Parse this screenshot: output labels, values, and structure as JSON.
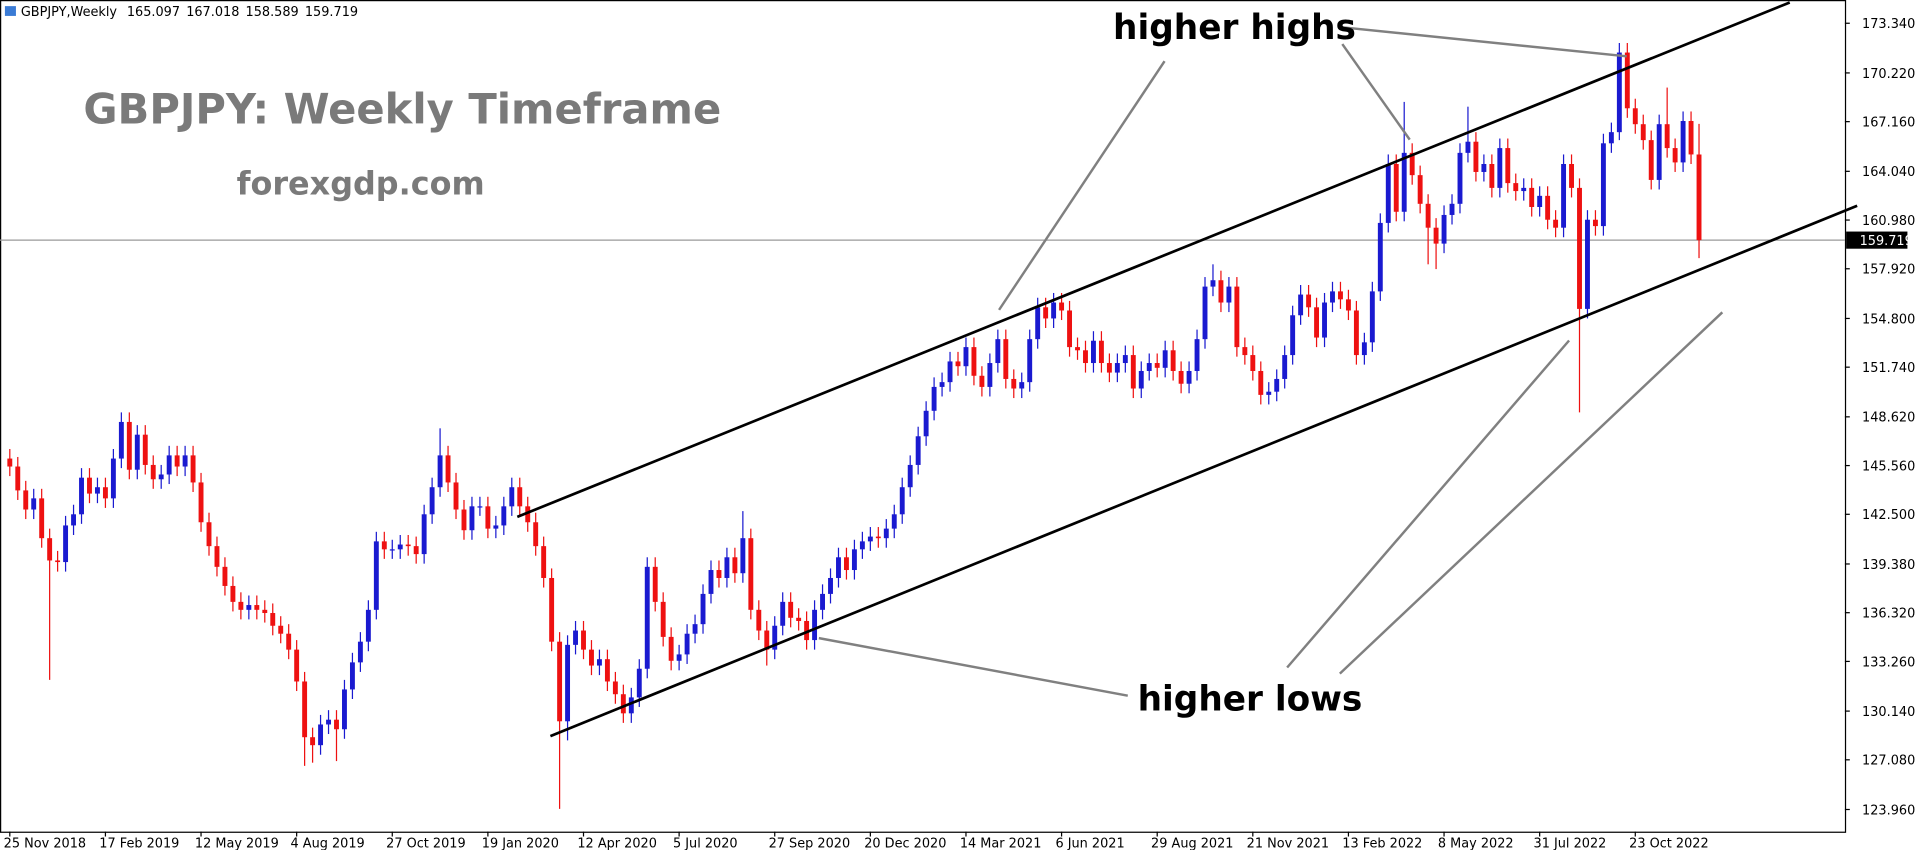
{
  "chart_data": {
    "type": "candlestick",
    "symbol": "GBPJPY,Weekly",
    "title": "GBPJPY: Weekly Timeframe",
    "subtitle": "forexgdp.com",
    "annotations": [
      "higher highs",
      "higher lows"
    ],
    "up_color": "#1a1ad0",
    "down_color": "#ee1111",
    "categories": [
      "25 Nov 2018",
      null,
      null,
      null,
      null,
      null,
      null,
      null,
      null,
      null,
      null,
      null,
      "17 Feb 2019",
      null,
      null,
      null,
      null,
      null,
      null,
      null,
      null,
      null,
      null,
      null,
      "12 May 2019",
      null,
      null,
      null,
      null,
      null,
      null,
      null,
      null,
      null,
      null,
      null,
      "4 Aug 2019",
      null,
      null,
      null,
      null,
      null,
      null,
      null,
      null,
      null,
      null,
      null,
      "27 Oct 2019",
      null,
      null,
      null,
      null,
      null,
      null,
      null,
      null,
      null,
      null,
      null,
      "19 Jan 2020",
      null,
      null,
      null,
      null,
      null,
      null,
      null,
      null,
      null,
      null,
      null,
      "12 Apr 2020",
      null,
      null,
      null,
      null,
      null,
      null,
      null,
      null,
      null,
      null,
      null,
      "5 Jul 2020",
      null,
      null,
      null,
      null,
      null,
      null,
      null,
      null,
      null,
      null,
      null,
      "27 Sep 2020",
      null,
      null,
      null,
      null,
      null,
      null,
      null,
      null,
      null,
      null,
      null,
      "20 Dec 2020",
      null,
      null,
      null,
      null,
      null,
      null,
      null,
      null,
      null,
      null,
      null,
      "14 Mar 2021",
      null,
      null,
      null,
      null,
      null,
      null,
      null,
      null,
      null,
      null,
      null,
      "6 Jun 2021",
      null,
      null,
      null,
      null,
      null,
      null,
      null,
      null,
      null,
      null,
      null,
      "29 Aug 2021",
      null,
      null,
      null,
      null,
      null,
      null,
      null,
      null,
      null,
      null,
      null,
      "21 Nov 2021",
      null,
      null,
      null,
      null,
      null,
      null,
      null,
      null,
      null,
      null,
      null,
      "13 Feb 2022",
      null,
      null,
      null,
      null,
      null,
      null,
      null,
      null,
      null,
      null,
      null,
      "8 May 2022",
      null,
      null,
      null,
      null,
      null,
      null,
      null,
      null,
      null,
      null,
      null,
      "31 Jul 2022",
      null,
      null,
      null,
      null,
      null,
      null,
      null,
      null,
      null,
      null,
      null,
      "23 Oct 2022",
      null,
      null,
      null,
      null,
      null,
      null,
      null,
      null
    ],
    "open": [
      146.0,
      145.5,
      144.0,
      142.8,
      143.5,
      141.0,
      139.6,
      139.5,
      141.8,
      142.5,
      144.8,
      143.8,
      144.2,
      143.5,
      146.0,
      148.3,
      145.3,
      147.5,
      145.6,
      144.7,
      145.0,
      146.2,
      145.5,
      146.2,
      144.5,
      142.0,
      140.5,
      139.2,
      138.0,
      137.0,
      136.5,
      136.8,
      136.5,
      136.3,
      135.5,
      135.0,
      134.0,
      132.0,
      128.5,
      128.0,
      129.3,
      129.6,
      129.0,
      131.5,
      133.2,
      134.5,
      136.5,
      140.8,
      140.3,
      140.3,
      140.6,
      140.5,
      140.0,
      142.5,
      144.2,
      146.2,
      144.5,
      142.8,
      141.5,
      143.0,
      143.0,
      141.6,
      141.8,
      143.0,
      144.2,
      143.0,
      142.0,
      140.5,
      138.5,
      134.5,
      129.5,
      134.3,
      135.2,
      134.0,
      133.0,
      133.4,
      132.0,
      131.2,
      130.0,
      131.0,
      132.8,
      139.2,
      137.0,
      134.8,
      133.3,
      133.7,
      135.0,
      135.6,
      137.5,
      139.0,
      138.5,
      139.8,
      138.8,
      141.0,
      136.5,
      135.2,
      134.0,
      135.5,
      137.0,
      136.0,
      135.8,
      134.6,
      136.5,
      137.5,
      138.5,
      139.8,
      139.0,
      140.3,
      140.8,
      141.1,
      141.0,
      141.6,
      142.5,
      144.2,
      145.6,
      147.4,
      149.0,
      150.5,
      150.8,
      152.1,
      151.8,
      153.0,
      151.2,
      150.5,
      152.0,
      153.5,
      151.0,
      150.4,
      150.8,
      153.5,
      155.5,
      154.8,
      155.8,
      155.3,
      153.0,
      152.8,
      152.0,
      153.4,
      152.0,
      151.4,
      152.0,
      152.5,
      150.4,
      151.5,
      152.0,
      151.7,
      152.8,
      151.5,
      150.7,
      151.5,
      153.5,
      156.8,
      157.2,
      155.8,
      156.8,
      153.0,
      152.5,
      151.5,
      150.0,
      150.2,
      151.0,
      152.5,
      155.0,
      156.3,
      155.5,
      153.6,
      155.8,
      156.5,
      156.0,
      155.3,
      152.5,
      153.3,
      156.5,
      160.8,
      164.5,
      161.5,
      165.2,
      163.8,
      162.0,
      160.5,
      159.5,
      161.3,
      162.0,
      165.2,
      165.9,
      164.0,
      164.5,
      163.0,
      165.5,
      163.3,
      162.8,
      163.0,
      161.8,
      162.5,
      161.0,
      160.5,
      164.5,
      163.0,
      155.4,
      161.0,
      160.6,
      165.8,
      166.5,
      171.5,
      168.0,
      167.0,
      166.0,
      163.5,
      167.0,
      165.5,
      164.6,
      167.2,
      165.097
    ],
    "high": [
      146.6,
      146.1,
      144.6,
      144.1,
      144.1,
      141.6,
      140.2,
      142.4,
      143.1,
      145.4,
      145.4,
      144.8,
      144.8,
      146.6,
      148.9,
      148.9,
      148.1,
      148.1,
      146.2,
      145.6,
      146.8,
      146.8,
      146.8,
      146.8,
      145.1,
      142.6,
      141.1,
      139.8,
      138.6,
      137.6,
      137.4,
      137.4,
      137.1,
      136.9,
      136.1,
      135.6,
      134.6,
      132.6,
      129.1,
      129.9,
      130.2,
      130.2,
      132.1,
      133.8,
      135.1,
      137.1,
      141.4,
      141.4,
      140.9,
      141.2,
      141.2,
      141.1,
      143.1,
      144.8,
      147.9,
      146.8,
      145.1,
      143.4,
      143.6,
      143.6,
      143.6,
      142.4,
      143.6,
      144.8,
      144.8,
      143.6,
      142.6,
      141.1,
      139.1,
      135.1,
      134.9,
      135.8,
      135.8,
      134.6,
      134.0,
      134.0,
      132.6,
      131.8,
      131.6,
      133.4,
      139.8,
      139.8,
      137.6,
      135.4,
      134.3,
      135.6,
      136.2,
      138.1,
      139.6,
      139.6,
      140.4,
      140.4,
      142.7,
      141.6,
      137.1,
      135.8,
      136.1,
      137.6,
      137.6,
      136.6,
      136.4,
      137.1,
      138.1,
      139.1,
      140.4,
      140.4,
      140.9,
      141.4,
      141.7,
      141.7,
      142.2,
      143.1,
      144.8,
      146.2,
      148.0,
      149.6,
      151.1,
      151.4,
      152.7,
      152.7,
      153.6,
      153.6,
      151.8,
      152.6,
      154.1,
      154.1,
      151.6,
      151.4,
      154.1,
      156.1,
      156.1,
      156.4,
      156.4,
      155.9,
      153.6,
      153.4,
      154.0,
      154.0,
      152.6,
      152.6,
      153.1,
      153.1,
      152.1,
      152.6,
      152.6,
      153.4,
      153.4,
      152.1,
      152.1,
      154.1,
      157.4,
      158.2,
      157.8,
      157.4,
      157.4,
      153.6,
      153.1,
      152.1,
      150.8,
      151.6,
      153.1,
      155.6,
      156.9,
      156.9,
      156.1,
      156.4,
      157.1,
      157.1,
      156.6,
      155.9,
      153.9,
      157.1,
      161.4,
      165.1,
      165.1,
      168.4,
      165.8,
      164.4,
      162.6,
      161.1,
      161.9,
      162.6,
      165.8,
      168.1,
      166.5,
      165.1,
      165.1,
      166.1,
      166.1,
      163.9,
      163.6,
      163.6,
      163.1,
      163.1,
      161.6,
      165.1,
      165.1,
      163.6,
      161.6,
      161.6,
      166.4,
      167.1,
      172.1,
      172.1,
      168.6,
      167.6,
      166.6,
      167.6,
      169.3,
      166.1,
      167.8,
      167.8,
      167.018
    ],
    "low": [
      144.9,
      143.4,
      142.2,
      142.2,
      140.4,
      132.1,
      138.9,
      138.9,
      141.2,
      141.9,
      143.2,
      143.2,
      142.9,
      142.9,
      145.4,
      144.7,
      144.7,
      145.0,
      144.1,
      144.1,
      144.4,
      144.9,
      144.9,
      143.9,
      141.4,
      139.9,
      138.6,
      137.4,
      136.4,
      135.9,
      135.9,
      135.9,
      135.7,
      134.9,
      134.4,
      133.4,
      131.4,
      126.7,
      126.9,
      127.4,
      128.7,
      127.0,
      128.4,
      130.9,
      132.6,
      133.9,
      135.9,
      139.7,
      139.7,
      139.7,
      139.9,
      139.4,
      139.4,
      141.9,
      143.6,
      143.9,
      142.2,
      140.9,
      140.9,
      142.4,
      141.0,
      141.0,
      141.2,
      142.4,
      142.4,
      141.4,
      139.9,
      137.9,
      133.9,
      124.0,
      128.3,
      133.7,
      133.4,
      132.4,
      132.4,
      131.4,
      130.6,
      129.4,
      129.4,
      130.4,
      132.2,
      136.4,
      134.2,
      132.7,
      132.7,
      133.1,
      134.4,
      135.0,
      136.9,
      137.9,
      137.9,
      138.2,
      138.2,
      135.9,
      134.6,
      133.0,
      133.4,
      134.9,
      135.4,
      135.2,
      134.0,
      134.0,
      135.9,
      136.9,
      137.9,
      138.4,
      138.4,
      139.7,
      140.2,
      140.4,
      140.4,
      141.0,
      141.9,
      143.6,
      145.0,
      146.8,
      148.4,
      149.9,
      150.2,
      151.2,
      151.2,
      150.6,
      149.9,
      149.9,
      151.4,
      150.4,
      149.8,
      149.8,
      150.2,
      152.9,
      154.2,
      154.2,
      154.7,
      152.4,
      152.2,
      151.4,
      151.4,
      151.4,
      150.8,
      150.8,
      151.4,
      149.8,
      149.8,
      150.9,
      151.1,
      151.1,
      150.9,
      150.1,
      150.1,
      150.9,
      152.9,
      156.2,
      155.2,
      155.2,
      152.4,
      151.9,
      150.9,
      149.4,
      149.4,
      149.6,
      150.4,
      151.9,
      154.4,
      154.9,
      153.0,
      153.0,
      155.2,
      155.4,
      154.7,
      151.9,
      151.9,
      152.7,
      155.9,
      160.2,
      160.9,
      160.9,
      163.2,
      161.4,
      158.2,
      157.9,
      158.9,
      160.7,
      161.4,
      164.6,
      163.4,
      163.4,
      162.4,
      162.4,
      162.7,
      162.2,
      162.2,
      161.2,
      161.2,
      160.4,
      159.9,
      159.9,
      162.4,
      148.9,
      154.8,
      160.0,
      160.0,
      165.2,
      166.0,
      167.4,
      166.4,
      165.4,
      162.9,
      162.9,
      164.9,
      164.0,
      164.0,
      164.5,
      158.589
    ],
    "close": [
      145.5,
      144.0,
      142.8,
      143.5,
      141.0,
      139.6,
      139.5,
      141.8,
      142.5,
      144.8,
      143.8,
      144.2,
      143.5,
      146.0,
      148.3,
      145.3,
      147.5,
      145.6,
      144.7,
      145.0,
      146.2,
      145.5,
      146.2,
      144.5,
      142.0,
      140.5,
      139.2,
      138.0,
      137.0,
      136.5,
      136.8,
      136.5,
      136.3,
      135.5,
      135.0,
      134.0,
      132.0,
      128.5,
      128.0,
      129.3,
      129.6,
      129.0,
      131.5,
      133.2,
      134.5,
      136.5,
      140.8,
      140.3,
      140.3,
      140.6,
      140.5,
      140.0,
      142.5,
      144.2,
      146.2,
      144.5,
      142.8,
      141.5,
      143.0,
      143.0,
      141.6,
      141.8,
      143.0,
      144.2,
      143.0,
      142.0,
      140.5,
      138.5,
      134.5,
      129.5,
      134.3,
      135.2,
      134.0,
      133.0,
      133.4,
      132.0,
      131.2,
      130.0,
      131.0,
      132.8,
      139.2,
      137.0,
      134.8,
      133.3,
      133.7,
      135.0,
      135.6,
      137.5,
      139.0,
      138.5,
      139.8,
      138.8,
      141.0,
      136.5,
      135.2,
      134.0,
      135.5,
      137.0,
      136.0,
      135.8,
      134.6,
      136.5,
      137.5,
      138.5,
      139.8,
      139.0,
      140.3,
      140.8,
      141.1,
      141.0,
      141.6,
      142.5,
      144.2,
      145.6,
      147.4,
      149.0,
      150.5,
      150.8,
      152.1,
      151.8,
      153.0,
      151.2,
      150.5,
      152.0,
      153.5,
      151.0,
      150.4,
      150.8,
      153.5,
      155.5,
      154.8,
      155.8,
      155.3,
      153.0,
      152.8,
      152.0,
      153.4,
      152.0,
      151.4,
      152.0,
      152.5,
      150.4,
      151.5,
      152.0,
      151.7,
      152.8,
      151.5,
      150.7,
      151.5,
      153.5,
      156.8,
      157.2,
      155.8,
      156.8,
      153.0,
      152.5,
      151.5,
      150.0,
      150.2,
      151.0,
      152.5,
      155.0,
      156.3,
      155.5,
      153.6,
      155.8,
      156.5,
      156.0,
      155.3,
      152.5,
      153.3,
      156.5,
      160.8,
      164.5,
      161.5,
      165.2,
      163.8,
      162.0,
      160.5,
      159.5,
      161.3,
      162.0,
      165.2,
      165.9,
      164.0,
      164.5,
      163.0,
      165.5,
      163.3,
      162.8,
      163.0,
      161.8,
      162.5,
      161.0,
      160.5,
      164.5,
      163.0,
      155.4,
      161.0,
      160.6,
      165.8,
      166.5,
      171.5,
      168.0,
      167.0,
      166.0,
      163.5,
      167.0,
      165.5,
      164.6,
      167.2,
      165.1,
      159.719
    ],
    "ylim": [
      122.57,
      174.8
    ],
    "yticks": [
      {
        "value": 173.34,
        "label": "173.340"
      },
      {
        "value": 170.22,
        "label": "170.220"
      },
      {
        "value": 167.16,
        "label": "167.160"
      },
      {
        "value": 164.04,
        "label": "164.040"
      },
      {
        "value": 160.98,
        "label": "160.980"
      },
      {
        "value": 157.92,
        "label": "157.920"
      },
      {
        "value": 154.8,
        "label": "154.800"
      },
      {
        "value": 151.74,
        "label": "151.740"
      },
      {
        "value": 148.62,
        "label": "148.620"
      },
      {
        "value": 145.56,
        "label": "145.560"
      },
      {
        "value": 142.5,
        "label": "142.500"
      },
      {
        "value": 139.38,
        "label": "139.380"
      },
      {
        "value": 136.32,
        "label": "136.320"
      },
      {
        "value": 133.26,
        "label": "133.260"
      },
      {
        "value": 130.14,
        "label": "130.140"
      },
      {
        "value": 127.08,
        "label": "127.080"
      },
      {
        "value": 123.96,
        "label": "123.960"
      }
    ]
  }
}
